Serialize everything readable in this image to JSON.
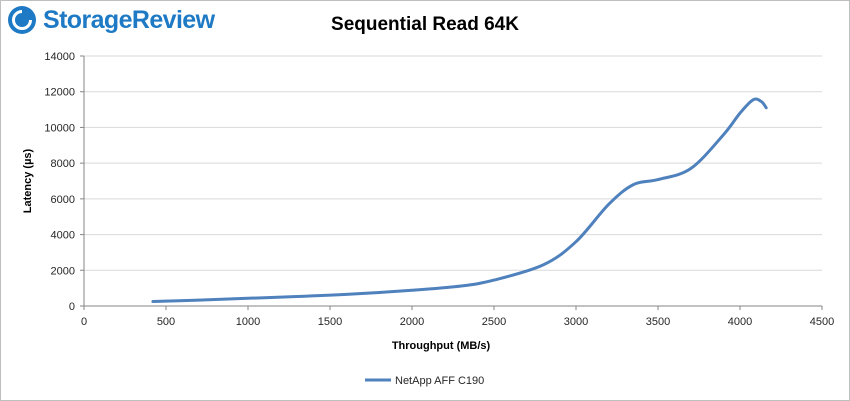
{
  "brand": {
    "name": "StorageReview"
  },
  "chart_data": {
    "type": "line",
    "title": "Sequential Read 64K",
    "xlabel": "Throughput (MB/s)",
    "ylabel": "Latency (µs)",
    "xlim": [
      0,
      4500
    ],
    "ylim": [
      0,
      14000
    ],
    "x_ticks": [
      0,
      500,
      1000,
      1500,
      2000,
      2500,
      3000,
      3500,
      4000,
      4500
    ],
    "y_ticks": [
      0,
      2000,
      4000,
      6000,
      8000,
      10000,
      12000,
      14000
    ],
    "grid": "horizontal",
    "legend_position": "bottom",
    "series": [
      {
        "name": "NetApp AFF C190",
        "color": "#4f81bd",
        "points": [
          [
            420,
            250
          ],
          [
            700,
            330
          ],
          [
            1000,
            430
          ],
          [
            1300,
            530
          ],
          [
            1600,
            650
          ],
          [
            2000,
            880
          ],
          [
            2300,
            1120
          ],
          [
            2500,
            1450
          ],
          [
            2800,
            2300
          ],
          [
            3000,
            3600
          ],
          [
            3200,
            5700
          ],
          [
            3350,
            6800
          ],
          [
            3500,
            7080
          ],
          [
            3700,
            7700
          ],
          [
            3900,
            9600
          ],
          [
            4000,
            10800
          ],
          [
            4080,
            11550
          ],
          [
            4130,
            11450
          ],
          [
            4160,
            11100
          ]
        ]
      }
    ]
  }
}
